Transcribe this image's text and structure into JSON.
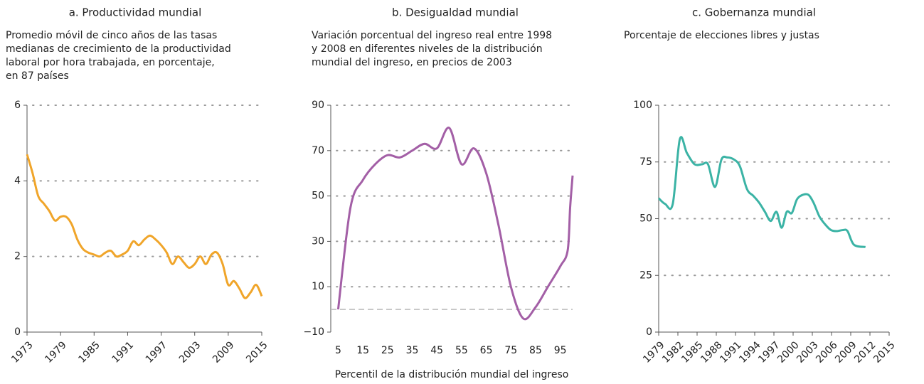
{
  "chart_data": [
    {
      "type": "line",
      "title": "a. Productividad mundial",
      "subtitle": [
        "Promedio móvil de cinco años de las tasas",
        "medianas de crecimiento de la productividad",
        "laboral por hora trabajada, en porcentaje,",
        "en 87 países"
      ],
      "x": [
        1973,
        1974,
        1975,
        1976,
        1977,
        1978,
        1979,
        1980,
        1981,
        1982,
        1983,
        1984,
        1985,
        1986,
        1987,
        1988,
        1989,
        1990,
        1991,
        1992,
        1993,
        1994,
        1995,
        1996,
        1997,
        1998,
        1999,
        2000,
        2001,
        2002,
        2003,
        2004,
        2005,
        2006,
        2007,
        2008,
        2009,
        2010,
        2011,
        2012,
        2013,
        2014,
        2015
      ],
      "series": [
        {
          "color": "#f0a52a",
          "values": [
            4.7,
            4.2,
            3.6,
            3.4,
            3.2,
            2.95,
            3.05,
            3.05,
            2.85,
            2.45,
            2.2,
            2.1,
            2.05,
            2.0,
            2.1,
            2.15,
            2.0,
            2.05,
            2.15,
            2.4,
            2.3,
            2.45,
            2.55,
            2.45,
            2.3,
            2.1,
            1.8,
            2.0,
            1.85,
            1.7,
            1.8,
            2.0,
            1.8,
            2.05,
            2.1,
            1.8,
            1.25,
            1.35,
            1.15,
            0.9,
            1.05,
            1.25,
            0.95
          ]
        }
      ],
      "xlim": [
        1973,
        2015
      ],
      "xticks": [
        1973,
        1979,
        1985,
        1991,
        1997,
        2003,
        2009,
        2015
      ],
      "ylim": [
        0,
        6
      ],
      "yticks": [
        0,
        2,
        4,
        6
      ],
      "grid": true,
      "x_axis_line": true,
      "rotate_xticks": true
    },
    {
      "type": "line",
      "title": "b. Desigualdad mundial",
      "subtitle": [
        "Variación porcentual del ingreso real entre 1998",
        "y 2008 en diferentes niveles de la distribución",
        "mundial del ingreso, en precios de 2003"
      ],
      "x_label": "Percentil de la distribución mundial del ingreso",
      "x": [
        5,
        10,
        15,
        20,
        25,
        30,
        35,
        40,
        45,
        50,
        55,
        60,
        65,
        70,
        75,
        80,
        85,
        90,
        95,
        98,
        99,
        100
      ],
      "series": [
        {
          "color": "#a35fa6",
          "values": [
            0,
            45,
            57,
            64,
            68,
            67,
            70,
            73,
            71,
            80,
            64,
            71,
            60,
            37,
            10,
            -4,
            1,
            10,
            19,
            26,
            45,
            59
          ]
        }
      ],
      "xlim": [
        2,
        100
      ],
      "xticks": [
        5,
        15,
        25,
        35,
        45,
        55,
        65,
        75,
        85,
        95
      ],
      "ylim": [
        -10,
        90
      ],
      "yticks": [
        {
          "value": -10,
          "label": "−10"
        },
        10,
        30,
        50,
        70,
        90
      ],
      "grid": true,
      "hline": 0,
      "x_axis_line": false,
      "rotate_xticks": false
    },
    {
      "type": "line",
      "title": "c. Gobernanza mundial",
      "subtitle": [
        "Porcentaje de elecciones libres y justas"
      ],
      "x": [
        1979.0,
        1980.0,
        1981.2,
        1982.3,
        1983.4,
        1984.6,
        1985.8,
        1986.7,
        1987.8,
        1988.8,
        1989.7,
        1990.8,
        1991.7,
        1992.8,
        1993.8,
        1994.7,
        1995.6,
        1996.5,
        1997.4,
        1998.2,
        1999.0,
        1999.8,
        2000.6,
        2001.5,
        2002.4,
        2003.2,
        2004.1,
        2005.0,
        2005.9,
        2006.8,
        2007.8,
        2008.5,
        2009.5,
        2011.3
      ],
      "series": [
        {
          "color": "#3bb3a5",
          "values": [
            59,
            56.5,
            56.5,
            85,
            79,
            74,
            74,
            74,
            64,
            76,
            77,
            76,
            73,
            63,
            60,
            57,
            53,
            49,
            53,
            46,
            53,
            52.5,
            58.5,
            60.5,
            60.5,
            57,
            51,
            47.5,
            45,
            44.5,
            45,
            44.5,
            38.5,
            37.5
          ]
        }
      ],
      "xlim": [
        1979,
        2015
      ],
      "xticks": [
        1979,
        1982,
        1985,
        1988,
        1991,
        1994,
        1997,
        2000,
        2003,
        2006,
        2009,
        2012,
        2015
      ],
      "ylim": [
        0,
        100
      ],
      "yticks": [
        0,
        25,
        50,
        75,
        100
      ],
      "grid": true,
      "x_axis_line": true,
      "rotate_xticks": true
    }
  ]
}
